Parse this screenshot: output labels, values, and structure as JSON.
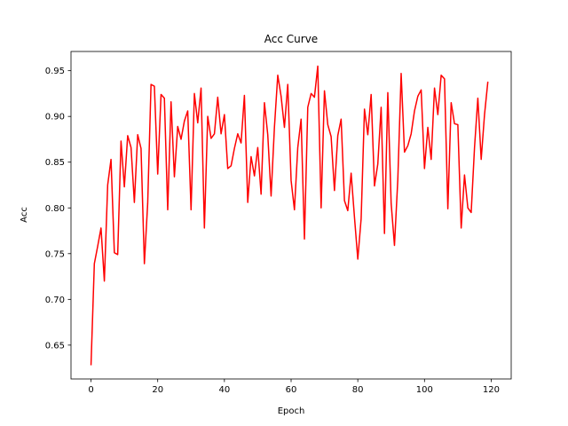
{
  "chart_data": {
    "type": "line",
    "title": "Acc Curve",
    "xlabel": "Epoch",
    "ylabel": "Acc",
    "xlim": [
      -6,
      126
    ],
    "ylim": [
      0.613,
      0.971
    ],
    "xticks": [
      0,
      20,
      40,
      60,
      80,
      100,
      120
    ],
    "xtick_labels": [
      "0",
      "20",
      "40",
      "60",
      "80",
      "100",
      "120"
    ],
    "yticks": [
      0.65,
      0.7,
      0.75,
      0.8,
      0.85,
      0.9,
      0.95
    ],
    "ytick_labels": [
      "0.65",
      "0.70",
      "0.75",
      "0.80",
      "0.85",
      "0.90",
      "0.95"
    ],
    "grid": false,
    "series": [
      {
        "color": "#ff0000",
        "x": [
          0,
          1,
          2,
          3,
          4,
          5,
          6,
          7,
          8,
          9,
          10,
          11,
          12,
          13,
          14,
          15,
          16,
          17,
          18,
          19,
          20,
          21,
          22,
          23,
          24,
          25,
          26,
          27,
          28,
          29,
          30,
          31,
          32,
          33,
          34,
          35,
          36,
          37,
          38,
          39,
          40,
          41,
          42,
          43,
          44,
          45,
          46,
          47,
          48,
          49,
          50,
          51,
          52,
          53,
          54,
          55,
          56,
          57,
          58,
          59,
          60,
          61,
          62,
          63,
          64,
          65,
          66,
          67,
          68,
          69,
          70,
          71,
          72,
          73,
          74,
          75,
          76,
          77,
          78,
          79,
          80,
          81,
          82,
          83,
          84,
          85,
          86,
          87,
          88,
          89,
          90,
          91,
          92,
          93,
          94,
          95,
          96,
          97,
          98,
          99,
          100,
          101,
          102,
          103,
          104,
          105,
          106,
          107,
          108,
          109,
          110,
          111,
          112,
          113,
          114,
          115,
          116,
          117,
          118,
          119
        ],
        "y": [
          0.628,
          0.739,
          0.758,
          0.778,
          0.72,
          0.825,
          0.853,
          0.751,
          0.749,
          0.873,
          0.823,
          0.879,
          0.866,
          0.806,
          0.88,
          0.865,
          0.739,
          0.805,
          0.935,
          0.933,
          0.837,
          0.924,
          0.92,
          0.798,
          0.916,
          0.834,
          0.889,
          0.875,
          0.895,
          0.906,
          0.798,
          0.925,
          0.893,
          0.931,
          0.778,
          0.9,
          0.876,
          0.881,
          0.921,
          0.881,
          0.902,
          0.843,
          0.846,
          0.865,
          0.881,
          0.871,
          0.923,
          0.806,
          0.856,
          0.835,
          0.866,
          0.815,
          0.915,
          0.88,
          0.813,
          0.888,
          0.945,
          0.922,
          0.888,
          0.935,
          0.83,
          0.798,
          0.866,
          0.897,
          0.766,
          0.91,
          0.925,
          0.921,
          0.955,
          0.8,
          0.928,
          0.891,
          0.878,
          0.819,
          0.879,
          0.897,
          0.808,
          0.797,
          0.838,
          0.79,
          0.744,
          0.788,
          0.908,
          0.88,
          0.924,
          0.824,
          0.848,
          0.91,
          0.772,
          0.926,
          0.805,
          0.759,
          0.831,
          0.947,
          0.861,
          0.868,
          0.881,
          0.906,
          0.922,
          0.929,
          0.843,
          0.888,
          0.853,
          0.931,
          0.902,
          0.945,
          0.941,
          0.799,
          0.915,
          0.892,
          0.891,
          0.778,
          0.836,
          0.8,
          0.795,
          0.866,
          0.92,
          0.853,
          0.902,
          0.938
        ]
      }
    ]
  }
}
